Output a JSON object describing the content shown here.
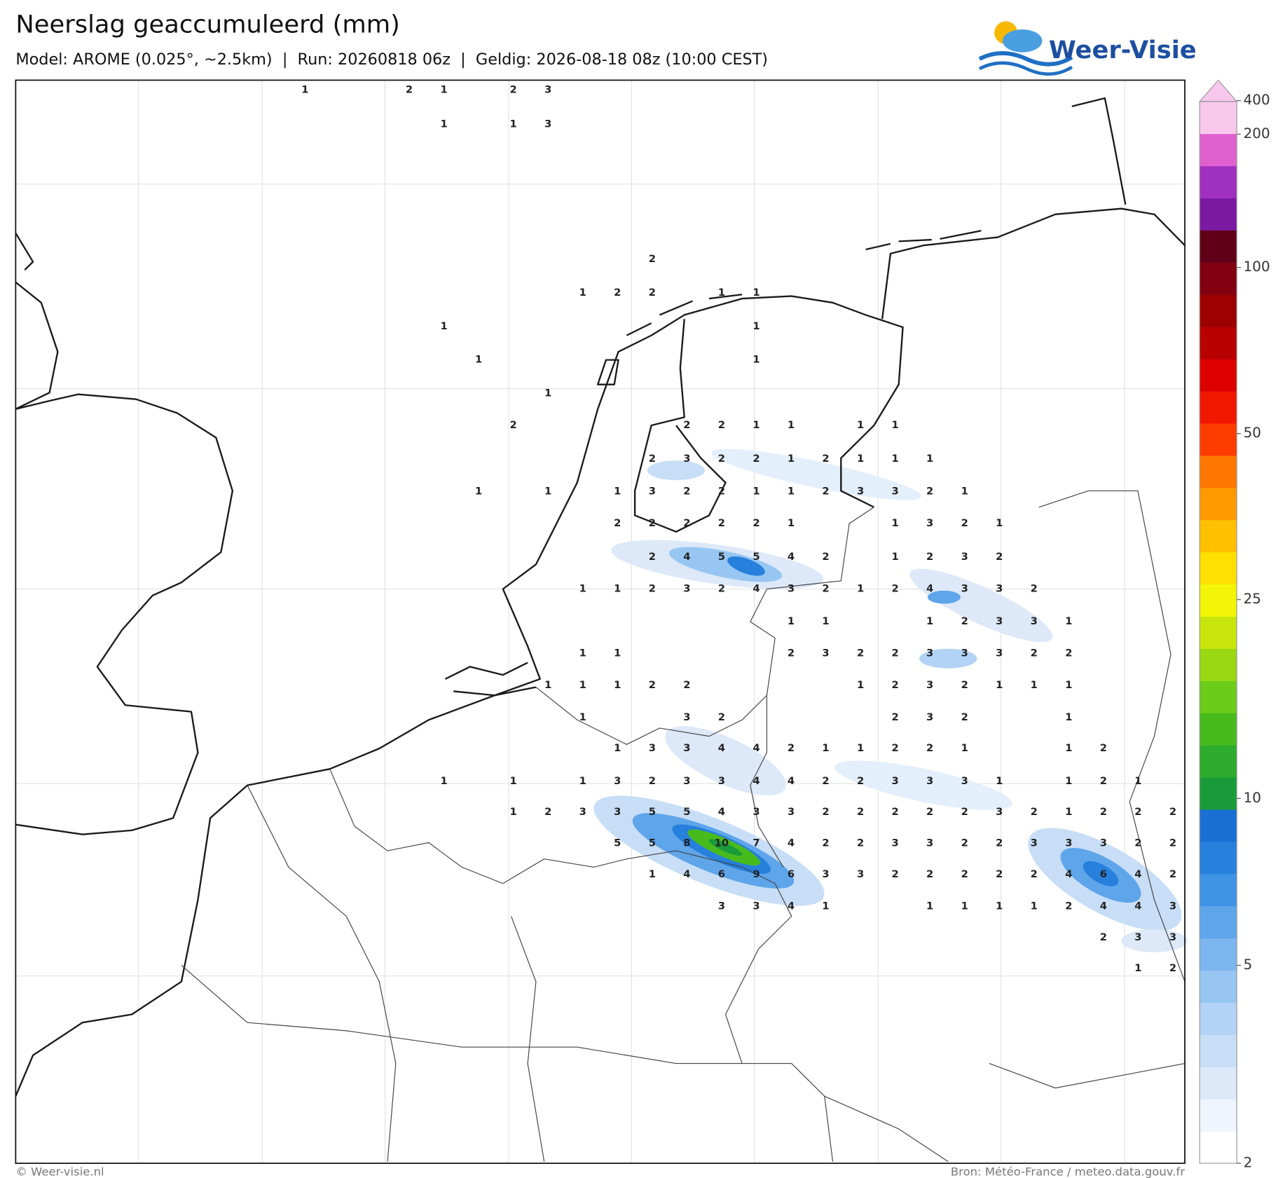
{
  "header": {
    "title": "Neerslag geaccumuleerd (mm)",
    "subtitle": "Model: AROME (0.025°, ~2.5km)  |  Run: 20260818 06z  |  Geldig: 2026-08-18 08z (10:00 CEST)"
  },
  "logo": {
    "text": "Weer-Visie"
  },
  "map": {
    "labels": [
      [
        1,
        null,
        null,
        2,
        1,
        null,
        2,
        3,
        null,
        null,
        null,
        null,
        null,
        null,
        null,
        null,
        null,
        null,
        null,
        null,
        null,
        null,
        null,
        null,
        null,
        null
      ],
      [
        null,
        null,
        null,
        null,
        1,
        null,
        1,
        3,
        null,
        null,
        null,
        null,
        null,
        null,
        null,
        null,
        null,
        null,
        null,
        null,
        null,
        null,
        null,
        null,
        null,
        null
      ],
      [
        null,
        null,
        null,
        null,
        null,
        null,
        null,
        null,
        null,
        null,
        2,
        null,
        null,
        null,
        null,
        null,
        null,
        null,
        null,
        null,
        null,
        null,
        null,
        null,
        null,
        null
      ],
      [
        null,
        null,
        null,
        null,
        null,
        null,
        null,
        null,
        1,
        2,
        2,
        null,
        1,
        1,
        null,
        null,
        null,
        null,
        null,
        null,
        null,
        null,
        null,
        null,
        null,
        null
      ],
      [
        null,
        null,
        null,
        null,
        1,
        null,
        null,
        null,
        null,
        null,
        null,
        null,
        null,
        1,
        null,
        null,
        null,
        null,
        null,
        null,
        null,
        null,
        null,
        null,
        null,
        null
      ],
      [
        null,
        null,
        null,
        null,
        null,
        1,
        null,
        null,
        null,
        null,
        null,
        null,
        null,
        1,
        null,
        null,
        null,
        null,
        null,
        null,
        null,
        null,
        null,
        null,
        null,
        null
      ],
      [
        null,
        null,
        null,
        null,
        null,
        null,
        null,
        1,
        null,
        null,
        null,
        null,
        null,
        null,
        null,
        null,
        null,
        null,
        null,
        null,
        null,
        null,
        null,
        null,
        null,
        null
      ],
      [
        null,
        null,
        null,
        null,
        null,
        null,
        2,
        null,
        null,
        null,
        null,
        2,
        2,
        1,
        1,
        null,
        1,
        1,
        null,
        null,
        null,
        null,
        null,
        null,
        null,
        null
      ],
      [
        null,
        null,
        null,
        null,
        null,
        null,
        null,
        null,
        null,
        null,
        2,
        3,
        2,
        2,
        1,
        2,
        1,
        1,
        1,
        null,
        null,
        null,
        null,
        null,
        null,
        null
      ],
      [
        null,
        null,
        null,
        null,
        null,
        1,
        null,
        1,
        null,
        1,
        3,
        2,
        2,
        1,
        1,
        2,
        3,
        3,
        2,
        1,
        null,
        null,
        null,
        null,
        null,
        null
      ],
      [
        null,
        null,
        null,
        null,
        null,
        null,
        null,
        null,
        null,
        2,
        2,
        2,
        2,
        2,
        1,
        null,
        null,
        1,
        3,
        2,
        1,
        null,
        null,
        null,
        null,
        null
      ],
      [
        null,
        null,
        null,
        null,
        null,
        null,
        null,
        null,
        null,
        null,
        2,
        4,
        5,
        5,
        4,
        2,
        null,
        1,
        2,
        3,
        2,
        null,
        null,
        null,
        null,
        null
      ],
      [
        null,
        null,
        null,
        null,
        null,
        null,
        null,
        null,
        1,
        1,
        2,
        3,
        2,
        4,
        3,
        2,
        1,
        2,
        4,
        3,
        3,
        2,
        null,
        null,
        null,
        null
      ],
      [
        null,
        null,
        null,
        null,
        null,
        null,
        null,
        null,
        null,
        null,
        null,
        null,
        null,
        null,
        1,
        1,
        null,
        null,
        1,
        2,
        3,
        3,
        1,
        null,
        null,
        null
      ],
      [
        null,
        null,
        null,
        null,
        null,
        null,
        null,
        null,
        1,
        1,
        null,
        null,
        null,
        null,
        2,
        3,
        2,
        2,
        3,
        3,
        3,
        2,
        2,
        null,
        null,
        null
      ],
      [
        null,
        null,
        null,
        null,
        null,
        null,
        null,
        1,
        1,
        1,
        2,
        2,
        null,
        null,
        null,
        null,
        1,
        2,
        3,
        2,
        1,
        1,
        1,
        null,
        null,
        null
      ],
      [
        null,
        null,
        null,
        null,
        null,
        null,
        null,
        null,
        1,
        null,
        null,
        3,
        2,
        null,
        null,
        null,
        null,
        2,
        3,
        2,
        null,
        null,
        1,
        null,
        null,
        null
      ],
      [
        null,
        null,
        null,
        null,
        null,
        null,
        null,
        null,
        null,
        1,
        3,
        3,
        4,
        4,
        2,
        1,
        1,
        2,
        2,
        1,
        null,
        null,
        1,
        2,
        null,
        null
      ],
      [
        null,
        null,
        null,
        null,
        1,
        null,
        1,
        null,
        1,
        3,
        2,
        3,
        3,
        4,
        4,
        2,
        2,
        3,
        3,
        3,
        1,
        null,
        1,
        2,
        1,
        null
      ],
      [
        null,
        null,
        null,
        null,
        null,
        null,
        1,
        2,
        3,
        3,
        5,
        5,
        4,
        3,
        3,
        2,
        2,
        2,
        2,
        2,
        3,
        2,
        1,
        2,
        2,
        2
      ],
      [
        null,
        null,
        null,
        null,
        null,
        null,
        null,
        null,
        null,
        5,
        5,
        8,
        10,
        7,
        4,
        2,
        2,
        3,
        3,
        2,
        2,
        3,
        3,
        3,
        2,
        2
      ],
      [
        null,
        null,
        null,
        null,
        null,
        null,
        null,
        null,
        null,
        null,
        1,
        4,
        6,
        9,
        6,
        3,
        3,
        2,
        2,
        2,
        2,
        2,
        4,
        6,
        4,
        2
      ],
      [
        null,
        null,
        null,
        null,
        null,
        null,
        null,
        null,
        null,
        null,
        null,
        null,
        3,
        3,
        4,
        1,
        null,
        null,
        1,
        1,
        1,
        1,
        2,
        4,
        4,
        3
      ],
      [
        null,
        null,
        null,
        null,
        null,
        null,
        null,
        null,
        null,
        null,
        null,
        null,
        null,
        null,
        null,
        null,
        null,
        null,
        null,
        null,
        null,
        null,
        null,
        2,
        3,
        3
      ],
      [
        null,
        null,
        null,
        null,
        null,
        null,
        null,
        null,
        null,
        null,
        null,
        null,
        null,
        null,
        null,
        null,
        null,
        null,
        null,
        null,
        null,
        null,
        null,
        null,
        1,
        2
      ]
    ]
  },
  "colorbar": {
    "ticks": [
      2,
      5,
      10,
      25,
      50,
      100,
      200,
      400
    ]
  },
  "footer": {
    "left": "© Weer-visie.nl",
    "right": "Bron: Météo-France / meteo.data.gouv.fr"
  }
}
